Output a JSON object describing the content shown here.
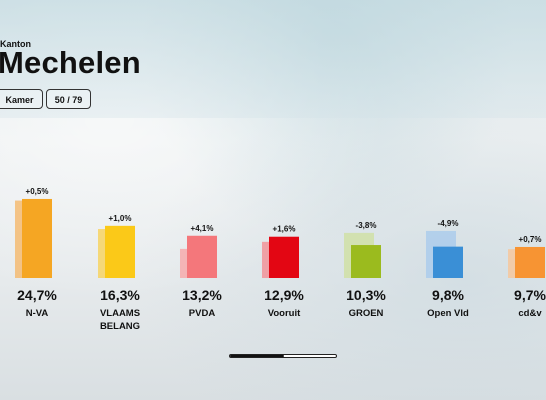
{
  "header": {
    "subtitle": "Kanton",
    "title": "Mechelen"
  },
  "tabs": [
    {
      "label": "Kamer"
    },
    {
      "label": "50 / 79"
    }
  ],
  "chart_data": {
    "type": "bar",
    "title": "",
    "categories": [
      "N-VA",
      "VLAAMS BELANG",
      "PVDA",
      "Vooruit",
      "GROEN",
      "Open Vld",
      "cd&v"
    ],
    "category_lines": [
      [
        "N-VA"
      ],
      [
        "VLAAMS",
        "BELANG"
      ],
      [
        "PVDA"
      ],
      [
        "Vooruit"
      ],
      [
        "GROEN"
      ],
      [
        "Open Vld"
      ],
      [
        "cd&v"
      ]
    ],
    "series": [
      {
        "values": [
          24.7,
          16.3,
          13.2,
          12.9,
          10.3,
          9.8,
          9.7
        ],
        "labels": [
          "24,7%",
          "16,3%",
          "13,2%",
          "12,9%",
          "10,3%",
          "9,8%",
          "9,7%"
        ]
      },
      {
        "values": [
          24.2,
          15.3,
          9.1,
          11.3,
          14.1,
          14.7,
          9.0
        ]
      }
    ],
    "changes": [
      "+0,5%",
      "+1,0%",
      "+4,1%",
      "+1,6%",
      "-3,8%",
      "-4,9%",
      "+0,7%"
    ],
    "colors": [
      "#f5a623",
      "#fbc918",
      "#f4777b",
      "#e30613",
      "#9bbb1e",
      "#3a8fd6",
      "#f79433"
    ],
    "colors_prev": [
      "#f5b86a",
      "#f8d25a",
      "#f7a6a8",
      "#f38d93",
      "#cfe0a1",
      "#a9cbec",
      "#f7c598"
    ],
    "ylim": [
      0,
      26
    ]
  },
  "scrollbar": {
    "position": 0.5
  }
}
